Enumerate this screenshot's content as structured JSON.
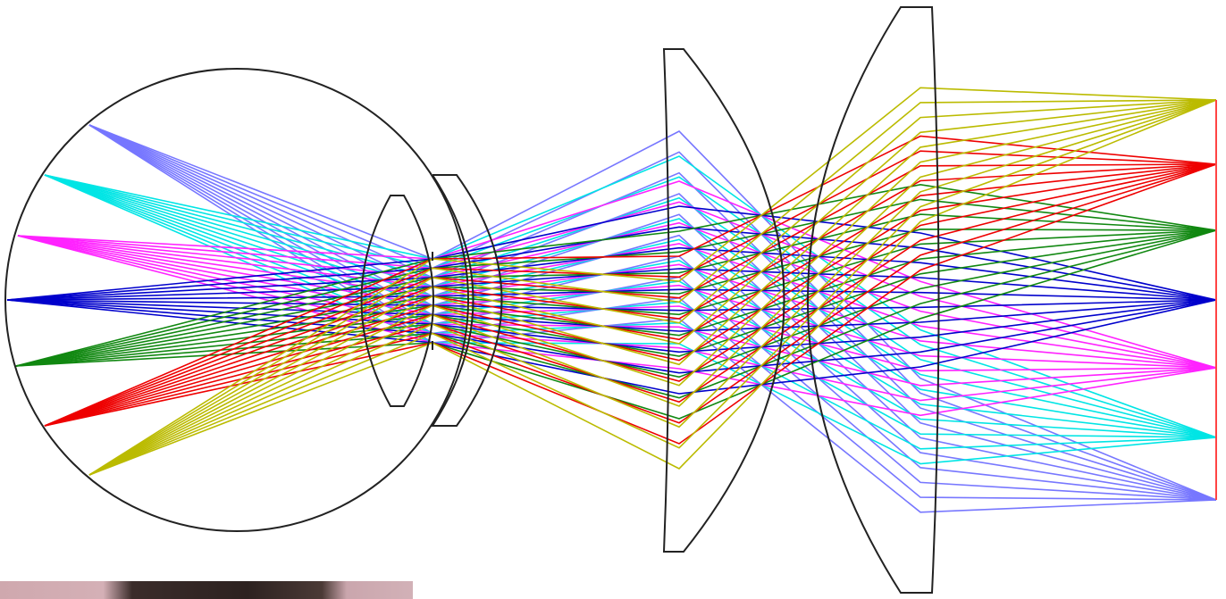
{
  "diagram": {
    "type": "optical-ray-trace",
    "background": "#ffffff",
    "outline_color": "#222222",
    "field_points": [
      {
        "name": "blue-light",
        "color": "#7777ff"
      },
      {
        "name": "cyan",
        "color": "#00e5e5"
      },
      {
        "name": "magenta",
        "color": "#ff22ff"
      },
      {
        "name": "blue",
        "color": "#0000cc"
      },
      {
        "name": "green",
        "color": "#118811"
      },
      {
        "name": "red",
        "color": "#ee0000"
      },
      {
        "name": "olive",
        "color": "#bbbb00"
      }
    ],
    "rays_per_field": 10,
    "image_plane_color": "#ff4444"
  },
  "photo_strip": {
    "description_icon": "face-photo-icon"
  }
}
